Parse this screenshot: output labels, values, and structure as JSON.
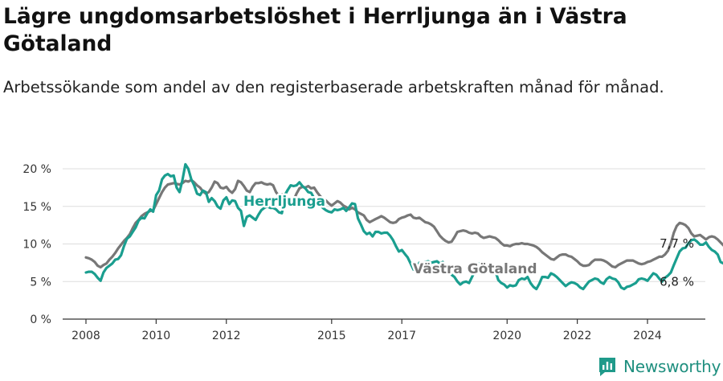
{
  "title": "Lägre ungdomsarbetslöshet i Herrljunga än i Västra Götaland",
  "subtitle": "Arbetssökande som andel av den registerbaserade arbetskraften månad för månad.",
  "brand": {
    "name": "Newsworthy",
    "icon": "newsworthy-logo-icon",
    "color": "#1f9a8a"
  },
  "chart_data": {
    "type": "line",
    "x_start": 2008.0,
    "x_step_months": 1,
    "xlim": [
      2007.75,
      2025.5
    ],
    "ylim": [
      0,
      20
    ],
    "x_ticks": [
      {
        "value": 2008,
        "label": "2008"
      },
      {
        "value": 2010,
        "label": "2010"
      },
      {
        "value": 2012,
        "label": "2012"
      },
      {
        "value": 2015,
        "label": "2015"
      },
      {
        "value": 2017,
        "label": "2017"
      },
      {
        "value": 2020,
        "label": "2020"
      },
      {
        "value": 2022,
        "label": "2022"
      },
      {
        "value": 2024,
        "label": "2024"
      }
    ],
    "y_ticks": [
      {
        "value": 0,
        "label": "0 %"
      },
      {
        "value": 5,
        "label": "5 %"
      },
      {
        "value": 10,
        "label": "10 %"
      },
      {
        "value": 15,
        "label": "15 %"
      },
      {
        "value": 20,
        "label": "20 %"
      }
    ],
    "grid": true,
    "series": [
      {
        "name": "Västra Götaland",
        "color": "#777777",
        "end_label": "7,7 %",
        "values": [
          8.2,
          8.1,
          7.9,
          7.6,
          7.1,
          6.9,
          7.2,
          7.4,
          7.9,
          8.3,
          8.8,
          9.4,
          9.9,
          10.4,
          10.8,
          11.3,
          12.1,
          12.8,
          13.2,
          13.7,
          14.0,
          14.2,
          14.4,
          14.5,
          15.3,
          16.1,
          16.9,
          17.5,
          17.9,
          18.0,
          18.1,
          18.0,
          17.9,
          18.1,
          18.4,
          18.3,
          18.5,
          18.2,
          17.8,
          17.5,
          17.0,
          16.7,
          16.9,
          17.5,
          18.3,
          18.1,
          17.5,
          17.4,
          17.6,
          17.1,
          16.8,
          17.3,
          18.4,
          18.2,
          17.7,
          17.1,
          16.9,
          17.6,
          18.1,
          18.1,
          18.2,
          18.0,
          17.9,
          18.0,
          17.8,
          16.9,
          16.4,
          16.6,
          16.4,
          16.1,
          15.9,
          15.8,
          16.7,
          17.4,
          17.6,
          17.5,
          17.7,
          17.4,
          17.5,
          16.9,
          16.4,
          16.0,
          15.8,
          15.4,
          15.1,
          15.4,
          15.7,
          15.5,
          15.1,
          14.9,
          14.6,
          14.8,
          14.6,
          14.2,
          14.0,
          13.8,
          13.2,
          12.9,
          13.1,
          13.3,
          13.5,
          13.7,
          13.5,
          13.2,
          12.9,
          12.8,
          12.9,
          13.3,
          13.5,
          13.6,
          13.8,
          13.9,
          13.5,
          13.4,
          13.5,
          13.2,
          12.9,
          12.8,
          12.6,
          12.3,
          11.7,
          11.1,
          10.7,
          10.4,
          10.2,
          10.3,
          10.9,
          11.6,
          11.7,
          11.8,
          11.7,
          11.5,
          11.4,
          11.5,
          11.4,
          11.0,
          10.8,
          10.9,
          11.0,
          10.9,
          10.8,
          10.5,
          10.1,
          9.8,
          9.8,
          9.7,
          9.9,
          10.0,
          10.0,
          10.1,
          10.0,
          10.0,
          9.9,
          9.8,
          9.6,
          9.3,
          8.9,
          8.6,
          8.3,
          8.0,
          7.9,
          8.2,
          8.5,
          8.6,
          8.6,
          8.4,
          8.3,
          8.0,
          7.7,
          7.3,
          7.1,
          7.1,
          7.2,
          7.6,
          7.9,
          7.9,
          7.9,
          7.8,
          7.6,
          7.3,
          7.0,
          6.9,
          7.2,
          7.4,
          7.6,
          7.8,
          7.8,
          7.8,
          7.6,
          7.4,
          7.3,
          7.4,
          7.6,
          7.7,
          7.9,
          8.1,
          8.3,
          8.3,
          8.6,
          9.1,
          10.1,
          11.5,
          12.4,
          12.8,
          12.7,
          12.5,
          12.1,
          11.4,
          11.0,
          11.1,
          11.2,
          10.9,
          10.6,
          10.9,
          11.0,
          10.9,
          10.6,
          10.2,
          9.8,
          9.6,
          9.0,
          8.7,
          8.6,
          8.4,
          8.3,
          8.1,
          8.0,
          7.7,
          7.4,
          7.4,
          7.7,
          8.0,
          7.8,
          7.5,
          7.3,
          7.2,
          7.1,
          7.2,
          7.3,
          7.3,
          7.2,
          7.1,
          7.0,
          7.1,
          7.0,
          6.9,
          6.7,
          6.6,
          6.4,
          6.1,
          5.9,
          5.8,
          6.1,
          6.4,
          6.6,
          6.9,
          7.0,
          6.9,
          6.8,
          6.9,
          7.0,
          7.0,
          6.9,
          6.8,
          6.6,
          6.7,
          7.0,
          7.3,
          7.7,
          7.8,
          7.8,
          7.7
        ]
      },
      {
        "name": "Herrljunga",
        "color": "#1a9e8f",
        "end_label": "6,8 %",
        "values": [
          6.2,
          6.3,
          6.3,
          6.0,
          5.5,
          5.1,
          6.2,
          6.8,
          7.1,
          7.4,
          7.9,
          8.0,
          8.5,
          9.7,
          10.7,
          11.0,
          11.6,
          12.2,
          13.1,
          13.5,
          13.4,
          14.1,
          14.6,
          14.3,
          16.5,
          17.1,
          18.6,
          19.1,
          19.3,
          19.0,
          19.1,
          17.5,
          16.9,
          18.5,
          20.6,
          20.0,
          18.6,
          17.8,
          16.7,
          16.5,
          17.1,
          16.9,
          15.6,
          16.1,
          15.7,
          15.0,
          14.7,
          15.8,
          16.2,
          15.3,
          15.8,
          15.7,
          14.8,
          14.4,
          12.4,
          13.6,
          13.8,
          13.5,
          13.2,
          13.9,
          14.5,
          14.8,
          15.0,
          14.8,
          14.8,
          14.6,
          14.2,
          14.1,
          16.5,
          17.2,
          17.8,
          17.7,
          17.8,
          18.2,
          17.7,
          17.4,
          16.9,
          16.8,
          16.1,
          15.7,
          15.3,
          14.8,
          14.5,
          14.3,
          14.2,
          14.6,
          14.5,
          14.6,
          14.8,
          14.4,
          14.9,
          15.4,
          15.3,
          13.4,
          12.6,
          11.7,
          11.3,
          11.5,
          11.0,
          11.6,
          11.6,
          11.4,
          11.5,
          11.5,
          11.1,
          10.5,
          9.7,
          9.0,
          9.2,
          8.7,
          8.2,
          7.4,
          6.6,
          6.8,
          7.5,
          7.3,
          7.6,
          7.7,
          7.5,
          7.6,
          7.7,
          7.4,
          7.6,
          7.1,
          6.6,
          5.9,
          5.6,
          5.0,
          4.6,
          4.9,
          5.0,
          4.8,
          5.6,
          6.4,
          7.3,
          7.5,
          7.4,
          7.2,
          7.2,
          6.8,
          6.4,
          5.2,
          4.8,
          4.6,
          4.2,
          4.5,
          4.4,
          4.5,
          5.2,
          5.4,
          5.3,
          5.6,
          4.8,
          4.3,
          4.0,
          4.7,
          5.6,
          5.6,
          5.5,
          6.1,
          5.9,
          5.6,
          5.2,
          4.8,
          4.4,
          4.7,
          4.9,
          4.8,
          4.6,
          4.2,
          4.0,
          4.5,
          5.0,
          5.2,
          5.4,
          5.3,
          4.9,
          4.7,
          5.3,
          5.6,
          5.4,
          5.3,
          4.9,
          4.2,
          4.0,
          4.3,
          4.4,
          4.6,
          4.8,
          5.3,
          5.4,
          5.3,
          5.1,
          5.6,
          6.1,
          5.9,
          5.4,
          5.0,
          5.5,
          5.8,
          6.2,
          7.2,
          8.1,
          9.0,
          9.4,
          9.5,
          10.1,
          10.5,
          10.6,
          10.3,
          9.9,
          9.9,
          10.2,
          9.6,
          9.2,
          9.0,
          8.6,
          7.6,
          7.4,
          7.1,
          7.0,
          7.2,
          7.1,
          7.3,
          7.4,
          7.6,
          7.1,
          6.9,
          6.7,
          6.4,
          7.0,
          7.4,
          7.3,
          7.0,
          6.8,
          6.9,
          6.4,
          5.9,
          5.3,
          4.8,
          5.0,
          5.3,
          5.1,
          5.5,
          5.7,
          5.5,
          5.2,
          5.0,
          4.8,
          4.6,
          4.3,
          4.2,
          4.0,
          4.0,
          5.0,
          5.8,
          6.0,
          5.5,
          5.5,
          5.8,
          5.6,
          5.3,
          5.0,
          4.9,
          5.0,
          5.1,
          5.2,
          5.4,
          5.7,
          6.1,
          6.6,
          6.8,
          6.8,
          6.8
        ]
      }
    ],
    "annotations": [
      {
        "text": "Herrljunga",
        "series": "Herrljunga"
      },
      {
        "text": "Västra Götaland",
        "series": "Västra Götaland"
      }
    ]
  }
}
